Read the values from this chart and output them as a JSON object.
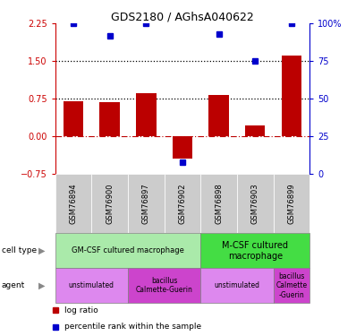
{
  "title": "GDS2180 / AGhsA040622",
  "samples": [
    "GSM76894",
    "GSM76900",
    "GSM76897",
    "GSM76902",
    "GSM76898",
    "GSM76903",
    "GSM76899"
  ],
  "log_ratio": [
    0.7,
    0.68,
    0.87,
    -0.45,
    0.82,
    0.22,
    1.62
  ],
  "percentile_rank": [
    100,
    92,
    100,
    8,
    93,
    75,
    100
  ],
  "ylim_left": [
    -0.75,
    2.25
  ],
  "ylim_right": [
    0,
    100
  ],
  "yticks_left": [
    -0.75,
    0,
    0.75,
    1.5,
    2.25
  ],
  "yticks_right": [
    0,
    25,
    50,
    75,
    100
  ],
  "hlines": [
    0.75,
    1.5
  ],
  "bar_color": "#bb0000",
  "dot_color": "#0000cc",
  "bar_width": 0.55,
  "cell_type_row": [
    {
      "label": "GM-CSF cultured macrophage",
      "start": 0,
      "end": 4,
      "color": "#aaeaaa"
    },
    {
      "label": "M-CSF cultured\nmacrophage",
      "start": 4,
      "end": 7,
      "color": "#44dd44"
    }
  ],
  "agent_row": [
    {
      "label": "unstimulated",
      "start": 0,
      "end": 2,
      "color": "#dd88ee"
    },
    {
      "label": "bacillus\nCalmette-Guerin",
      "start": 2,
      "end": 4,
      "color": "#cc44cc"
    },
    {
      "label": "unstimulated",
      "start": 4,
      "end": 6,
      "color": "#dd88ee"
    },
    {
      "label": "bacillus\nCalmette\n-Guerin",
      "start": 6,
      "end": 7,
      "color": "#cc44cc"
    }
  ],
  "legend_items": [
    {
      "color": "#bb0000",
      "label": "log ratio"
    },
    {
      "color": "#0000cc",
      "label": "percentile rank within the sample"
    }
  ],
  "tick_color_left": "#cc0000",
  "tick_color_right": "#0000cc",
  "xticklabel_bg": "#cccccc"
}
